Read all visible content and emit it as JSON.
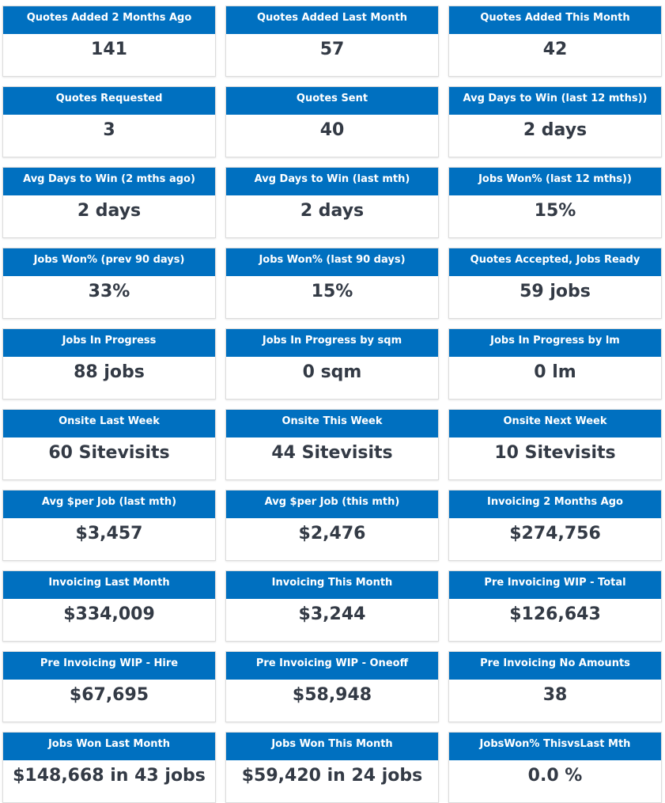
{
  "colors": {
    "header_bg": "#0070c0",
    "header_text": "#ffffff",
    "value_text": "#333a45",
    "card_border": "#dcdcdc"
  },
  "cards": [
    {
      "title": "Quotes Added 2 Months Ago",
      "value": "141"
    },
    {
      "title": "Quotes Added Last Month",
      "value": "57"
    },
    {
      "title": "Quotes Added This Month",
      "value": "42"
    },
    {
      "title": "Quotes Requested",
      "value": "3"
    },
    {
      "title": "Quotes Sent",
      "value": "40"
    },
    {
      "title": "Avg Days to Win (last 12 mths))",
      "value": "2 days"
    },
    {
      "title": "Avg Days to Win (2 mths ago)",
      "value": "2 days"
    },
    {
      "title": "Avg Days to Win (last mth)",
      "value": "2 days"
    },
    {
      "title": "Jobs Won% (last 12 mths))",
      "value": "15%"
    },
    {
      "title": "Jobs Won% (prev 90 days)",
      "value": "33%"
    },
    {
      "title": "Jobs Won% (last 90 days)",
      "value": "15%"
    },
    {
      "title": "Quotes Accepted, Jobs Ready",
      "value": "59 jobs"
    },
    {
      "title": "Jobs In Progress",
      "value": "88 jobs"
    },
    {
      "title": "Jobs In Progress by sqm",
      "value": "0 sqm"
    },
    {
      "title": "Jobs In Progress by lm",
      "value": "0 lm"
    },
    {
      "title": "Onsite Last Week",
      "value": "60 Sitevisits"
    },
    {
      "title": "Onsite This Week",
      "value": "44 Sitevisits"
    },
    {
      "title": "Onsite Next Week",
      "value": "10 Sitevisits"
    },
    {
      "title": "Avg $per Job (last mth)",
      "value": "$3,457"
    },
    {
      "title": "Avg $per Job (this mth)",
      "value": "$2,476"
    },
    {
      "title": "Invoicing 2 Months Ago",
      "value": "$274,756"
    },
    {
      "title": "Invoicing Last Month",
      "value": "$334,009"
    },
    {
      "title": "Invoicing This Month",
      "value": "$3,244"
    },
    {
      "title": "Pre Invoicing WIP - Total",
      "value": "$126,643"
    },
    {
      "title": "Pre Invoicing WIP - Hire",
      "value": "$67,695"
    },
    {
      "title": "Pre Invoicing WIP - Oneoff",
      "value": "$58,948"
    },
    {
      "title": "Pre Invoicing No Amounts",
      "value": "38"
    },
    {
      "title": "Jobs Won Last Month",
      "value": "$148,668 in 43 jobs"
    },
    {
      "title": "Jobs Won This Month",
      "value": "$59,420 in 24 jobs"
    },
    {
      "title": "JobsWon% ThisvsLast Mth",
      "value": "0.0 %"
    }
  ]
}
